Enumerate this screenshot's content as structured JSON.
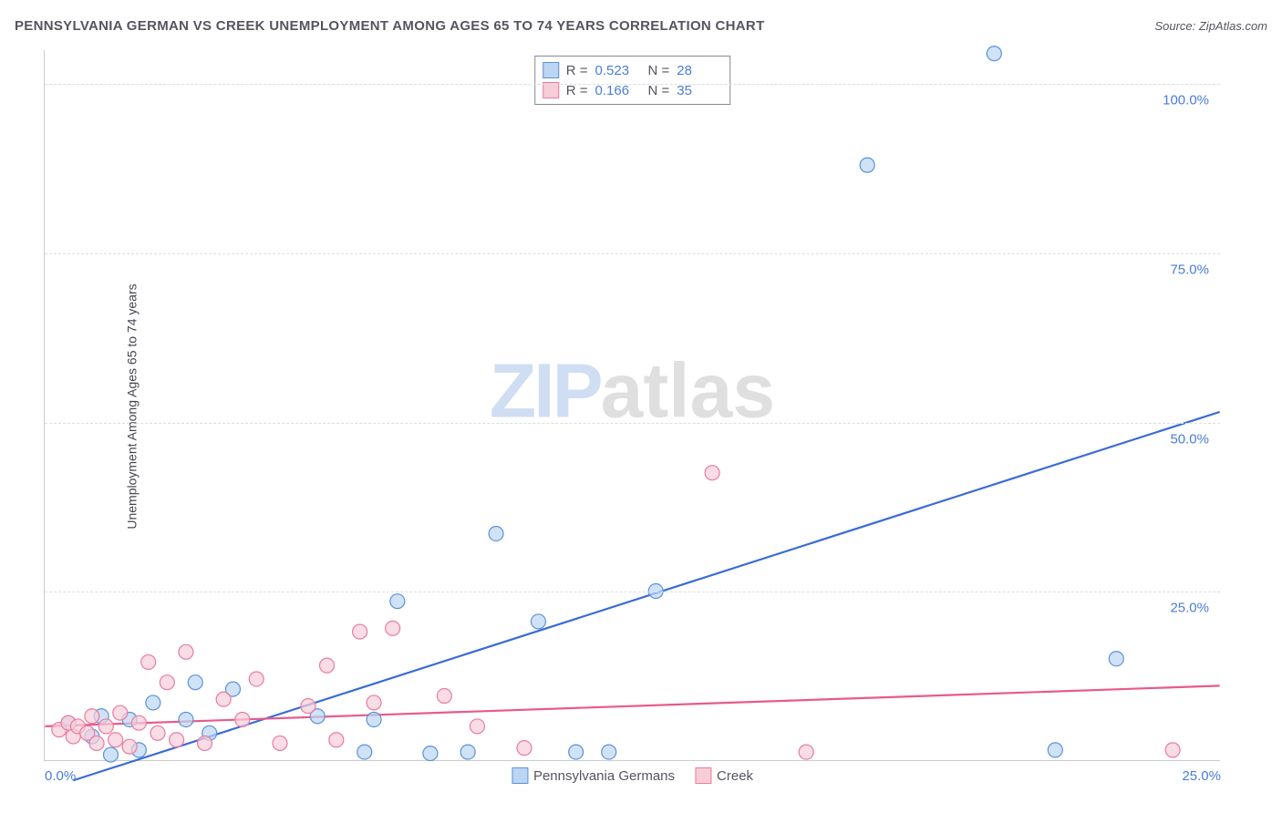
{
  "title": "PENNSYLVANIA GERMAN VS CREEK UNEMPLOYMENT AMONG AGES 65 TO 74 YEARS CORRELATION CHART",
  "source": "Source: ZipAtlas.com",
  "ylabel": "Unemployment Among Ages 65 to 74 years",
  "watermark_zip": "ZIP",
  "watermark_atlas": "atlas",
  "chart": {
    "type": "scatter",
    "xlim": [
      0,
      25
    ],
    "ylim": [
      0,
      105
    ],
    "yticks": [
      25,
      50,
      75,
      100
    ],
    "ytick_labels": [
      "25.0%",
      "50.0%",
      "75.0%",
      "100.0%"
    ],
    "xticks": [
      0,
      25
    ],
    "xtick_labels": [
      "0.0%",
      "25.0%"
    ],
    "background_color": "#ffffff",
    "grid_color": "#dddddd",
    "marker_radius": 8,
    "marker_stroke_width": 1.2,
    "line_width": 2.2,
    "series": [
      {
        "name": "Pennsylvania Germans",
        "color_fill": "#bcd5f2",
        "color_stroke": "#5a93d8",
        "line_color": "#3a6cd8",
        "R": "0.523",
        "N": "28",
        "points": [
          [
            0.5,
            5.5
          ],
          [
            1.0,
            3.5
          ],
          [
            1.2,
            6.5
          ],
          [
            1.4,
            0.8
          ],
          [
            1.8,
            6.0
          ],
          [
            2.0,
            1.5
          ],
          [
            2.3,
            8.5
          ],
          [
            3.0,
            6.0
          ],
          [
            3.2,
            11.5
          ],
          [
            3.5,
            4.0
          ],
          [
            4.0,
            10.5
          ],
          [
            5.8,
            6.5
          ],
          [
            6.8,
            1.2
          ],
          [
            7.0,
            6.0
          ],
          [
            7.5,
            23.5
          ],
          [
            8.2,
            1.0
          ],
          [
            9.0,
            1.2
          ],
          [
            9.6,
            33.5
          ],
          [
            10.5,
            20.5
          ],
          [
            11.3,
            1.2
          ],
          [
            12.0,
            1.2
          ],
          [
            13.0,
            25.0
          ],
          [
            17.5,
            88.0
          ],
          [
            20.2,
            104.5
          ],
          [
            21.5,
            1.5
          ],
          [
            22.8,
            15.0
          ]
        ],
        "trend": {
          "x1": 0.6,
          "y1": -3.0,
          "x2": 25.0,
          "y2": 51.5
        }
      },
      {
        "name": "Creek",
        "color_fill": "#f7cdd8",
        "color_stroke": "#e97ba2",
        "line_color": "#e75a8d",
        "R": "0.166",
        "N": "35",
        "points": [
          [
            0.3,
            4.5
          ],
          [
            0.5,
            5.5
          ],
          [
            0.6,
            3.5
          ],
          [
            0.7,
            5.0
          ],
          [
            0.9,
            4.0
          ],
          [
            1.0,
            6.5
          ],
          [
            1.1,
            2.5
          ],
          [
            1.3,
            5.0
          ],
          [
            1.5,
            3.0
          ],
          [
            1.6,
            7.0
          ],
          [
            1.8,
            2.0
          ],
          [
            2.0,
            5.5
          ],
          [
            2.2,
            14.5
          ],
          [
            2.4,
            4.0
          ],
          [
            2.6,
            11.5
          ],
          [
            2.8,
            3.0
          ],
          [
            3.0,
            16.0
          ],
          [
            3.4,
            2.5
          ],
          [
            3.8,
            9.0
          ],
          [
            4.2,
            6.0
          ],
          [
            4.5,
            12.0
          ],
          [
            5.0,
            2.5
          ],
          [
            5.6,
            8.0
          ],
          [
            6.0,
            14.0
          ],
          [
            6.2,
            3.0
          ],
          [
            6.7,
            19.0
          ],
          [
            7.0,
            8.5
          ],
          [
            7.4,
            19.5
          ],
          [
            8.5,
            9.5
          ],
          [
            9.2,
            5.0
          ],
          [
            10.2,
            1.8
          ],
          [
            14.2,
            42.5
          ],
          [
            16.2,
            1.2
          ],
          [
            24.0,
            1.5
          ]
        ],
        "trend": {
          "x1": 0.0,
          "y1": 5.0,
          "x2": 25.0,
          "y2": 11.0
        }
      }
    ]
  },
  "legend_bottom": [
    {
      "label": "Pennsylvania Germans"
    },
    {
      "label": "Creek"
    }
  ],
  "legend_corr_labels": {
    "R": "R =",
    "N": "N ="
  }
}
